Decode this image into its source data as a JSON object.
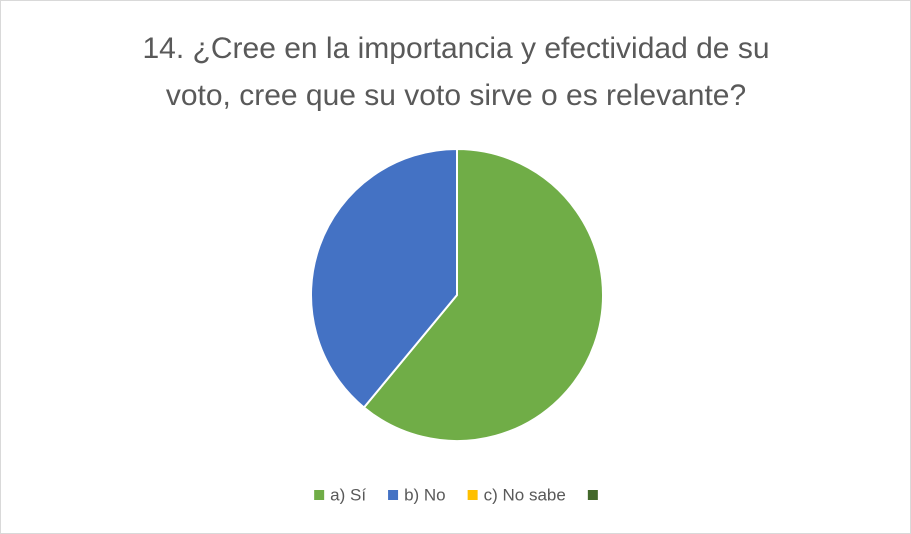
{
  "chart_data": {
    "type": "pie",
    "title": "14. ¿Cree en la importancia y efectividad de su voto, cree que su voto sirve o es relevante?",
    "title_lines": [
      "14. ¿Cree en la importancia y efectividad de su",
      "voto, cree que su voto sirve o es relevante?"
    ],
    "categories": [
      "a) Sí",
      "b) No",
      "c) No sabe",
      null
    ],
    "values": [
      61,
      39,
      0,
      0
    ],
    "colors": [
      "#70ad47",
      "#4472c4",
      "#ffc000",
      "#43682b"
    ],
    "legend": "bottom"
  }
}
